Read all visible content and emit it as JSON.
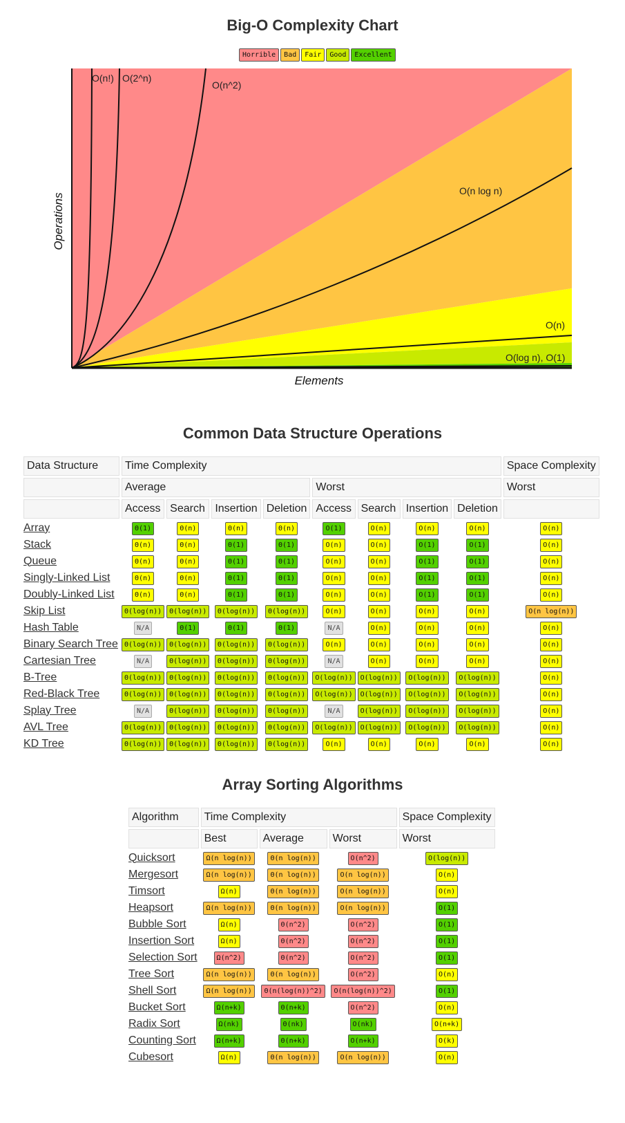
{
  "chart_title": "Big-O Complexity Chart",
  "legend": [
    {
      "label": "Horrible",
      "color": "#ff8989"
    },
    {
      "label": "Bad",
      "color": "#ffc543"
    },
    {
      "label": "Fair",
      "color": "#ffff00"
    },
    {
      "label": "Good",
      "color": "#c8ea00"
    },
    {
      "label": "Excellent",
      "color": "#53d000"
    }
  ],
  "chart_data": {
    "type": "area",
    "xlabel": "Elements",
    "ylabel": "Operations",
    "grid": false,
    "curves": [
      "O(n!)",
      "O(2^n)",
      "O(n^2)",
      "O(n log n)",
      "O(n)",
      "O(log n), O(1)"
    ]
  },
  "ds_section": {
    "title": "Common Data Structure Operations",
    "headers": {
      "data_structure": "Data Structure",
      "time_complexity": "Time Complexity",
      "space_complexity": "Space Complexity",
      "average": "Average",
      "worst": "Worst",
      "space_worst": "Worst",
      "ops": [
        "Access",
        "Search",
        "Insertion",
        "Deletion",
        "Access",
        "Search",
        "Insertion",
        "Deletion"
      ]
    },
    "rows": [
      {
        "name": "Array",
        "cells": [
          [
            "Θ(1)",
            "excellent"
          ],
          [
            "Θ(n)",
            "fair"
          ],
          [
            "Θ(n)",
            "fair"
          ],
          [
            "Θ(n)",
            "fair"
          ],
          [
            "O(1)",
            "excellent"
          ],
          [
            "O(n)",
            "fair"
          ],
          [
            "O(n)",
            "fair"
          ],
          [
            "O(n)",
            "fair"
          ],
          [
            "O(n)",
            "fair"
          ]
        ]
      },
      {
        "name": "Stack",
        "cells": [
          [
            "Θ(n)",
            "fair"
          ],
          [
            "Θ(n)",
            "fair"
          ],
          [
            "Θ(1)",
            "excellent"
          ],
          [
            "Θ(1)",
            "excellent"
          ],
          [
            "O(n)",
            "fair"
          ],
          [
            "O(n)",
            "fair"
          ],
          [
            "O(1)",
            "excellent"
          ],
          [
            "O(1)",
            "excellent"
          ],
          [
            "O(n)",
            "fair"
          ]
        ]
      },
      {
        "name": "Queue",
        "cells": [
          [
            "Θ(n)",
            "fair"
          ],
          [
            "Θ(n)",
            "fair"
          ],
          [
            "Θ(1)",
            "excellent"
          ],
          [
            "Θ(1)",
            "excellent"
          ],
          [
            "O(n)",
            "fair"
          ],
          [
            "O(n)",
            "fair"
          ],
          [
            "O(1)",
            "excellent"
          ],
          [
            "O(1)",
            "excellent"
          ],
          [
            "O(n)",
            "fair"
          ]
        ]
      },
      {
        "name": "Singly-Linked List",
        "cells": [
          [
            "Θ(n)",
            "fair"
          ],
          [
            "Θ(n)",
            "fair"
          ],
          [
            "Θ(1)",
            "excellent"
          ],
          [
            "Θ(1)",
            "excellent"
          ],
          [
            "O(n)",
            "fair"
          ],
          [
            "O(n)",
            "fair"
          ],
          [
            "O(1)",
            "excellent"
          ],
          [
            "O(1)",
            "excellent"
          ],
          [
            "O(n)",
            "fair"
          ]
        ]
      },
      {
        "name": "Doubly-Linked List",
        "cells": [
          [
            "Θ(n)",
            "fair"
          ],
          [
            "Θ(n)",
            "fair"
          ],
          [
            "Θ(1)",
            "excellent"
          ],
          [
            "Θ(1)",
            "excellent"
          ],
          [
            "O(n)",
            "fair"
          ],
          [
            "O(n)",
            "fair"
          ],
          [
            "O(1)",
            "excellent"
          ],
          [
            "O(1)",
            "excellent"
          ],
          [
            "O(n)",
            "fair"
          ]
        ]
      },
      {
        "name": "Skip List",
        "cells": [
          [
            "Θ(log(n))",
            "good"
          ],
          [
            "Θ(log(n))",
            "good"
          ],
          [
            "Θ(log(n))",
            "good"
          ],
          [
            "Θ(log(n))",
            "good"
          ],
          [
            "O(n)",
            "fair"
          ],
          [
            "O(n)",
            "fair"
          ],
          [
            "O(n)",
            "fair"
          ],
          [
            "O(n)",
            "fair"
          ],
          [
            "O(n log(n))",
            "bad"
          ]
        ]
      },
      {
        "name": "Hash Table",
        "cells": [
          [
            "N/A",
            "na"
          ],
          [
            "Θ(1)",
            "excellent"
          ],
          [
            "Θ(1)",
            "excellent"
          ],
          [
            "Θ(1)",
            "excellent"
          ],
          [
            "N/A",
            "na"
          ],
          [
            "O(n)",
            "fair"
          ],
          [
            "O(n)",
            "fair"
          ],
          [
            "O(n)",
            "fair"
          ],
          [
            "O(n)",
            "fair"
          ]
        ]
      },
      {
        "name": "Binary Search Tree",
        "cells": [
          [
            "Θ(log(n))",
            "good"
          ],
          [
            "Θ(log(n))",
            "good"
          ],
          [
            "Θ(log(n))",
            "good"
          ],
          [
            "Θ(log(n))",
            "good"
          ],
          [
            "O(n)",
            "fair"
          ],
          [
            "O(n)",
            "fair"
          ],
          [
            "O(n)",
            "fair"
          ],
          [
            "O(n)",
            "fair"
          ],
          [
            "O(n)",
            "fair"
          ]
        ]
      },
      {
        "name": "Cartesian Tree",
        "cells": [
          [
            "N/A",
            "na"
          ],
          [
            "Θ(log(n))",
            "good"
          ],
          [
            "Θ(log(n))",
            "good"
          ],
          [
            "Θ(log(n))",
            "good"
          ],
          [
            "N/A",
            "na"
          ],
          [
            "O(n)",
            "fair"
          ],
          [
            "O(n)",
            "fair"
          ],
          [
            "O(n)",
            "fair"
          ],
          [
            "O(n)",
            "fair"
          ]
        ]
      },
      {
        "name": "B-Tree",
        "cells": [
          [
            "Θ(log(n))",
            "good"
          ],
          [
            "Θ(log(n))",
            "good"
          ],
          [
            "Θ(log(n))",
            "good"
          ],
          [
            "Θ(log(n))",
            "good"
          ],
          [
            "O(log(n))",
            "good"
          ],
          [
            "O(log(n))",
            "good"
          ],
          [
            "O(log(n))",
            "good"
          ],
          [
            "O(log(n))",
            "good"
          ],
          [
            "O(n)",
            "fair"
          ]
        ]
      },
      {
        "name": "Red-Black Tree",
        "cells": [
          [
            "Θ(log(n))",
            "good"
          ],
          [
            "Θ(log(n))",
            "good"
          ],
          [
            "Θ(log(n))",
            "good"
          ],
          [
            "Θ(log(n))",
            "good"
          ],
          [
            "O(log(n))",
            "good"
          ],
          [
            "O(log(n))",
            "good"
          ],
          [
            "O(log(n))",
            "good"
          ],
          [
            "O(log(n))",
            "good"
          ],
          [
            "O(n)",
            "fair"
          ]
        ]
      },
      {
        "name": "Splay Tree",
        "cells": [
          [
            "N/A",
            "na"
          ],
          [
            "Θ(log(n))",
            "good"
          ],
          [
            "Θ(log(n))",
            "good"
          ],
          [
            "Θ(log(n))",
            "good"
          ],
          [
            "N/A",
            "na"
          ],
          [
            "O(log(n))",
            "good"
          ],
          [
            "O(log(n))",
            "good"
          ],
          [
            "O(log(n))",
            "good"
          ],
          [
            "O(n)",
            "fair"
          ]
        ]
      },
      {
        "name": "AVL Tree",
        "cells": [
          [
            "Θ(log(n))",
            "good"
          ],
          [
            "Θ(log(n))",
            "good"
          ],
          [
            "Θ(log(n))",
            "good"
          ],
          [
            "Θ(log(n))",
            "good"
          ],
          [
            "O(log(n))",
            "good"
          ],
          [
            "O(log(n))",
            "good"
          ],
          [
            "O(log(n))",
            "good"
          ],
          [
            "O(log(n))",
            "good"
          ],
          [
            "O(n)",
            "fair"
          ]
        ]
      },
      {
        "name": "KD Tree",
        "cells": [
          [
            "Θ(log(n))",
            "good"
          ],
          [
            "Θ(log(n))",
            "good"
          ],
          [
            "Θ(log(n))",
            "good"
          ],
          [
            "Θ(log(n))",
            "good"
          ],
          [
            "O(n)",
            "fair"
          ],
          [
            "O(n)",
            "fair"
          ],
          [
            "O(n)",
            "fair"
          ],
          [
            "O(n)",
            "fair"
          ],
          [
            "O(n)",
            "fair"
          ]
        ]
      }
    ]
  },
  "sort_section": {
    "title": "Array Sorting Algorithms",
    "headers": {
      "algorithm": "Algorithm",
      "time_complexity": "Time Complexity",
      "space_complexity": "Space Complexity",
      "best": "Best",
      "average": "Average",
      "worst": "Worst",
      "space_worst": "Worst"
    },
    "rows": [
      {
        "name": "Quicksort",
        "cells": [
          [
            "Ω(n log(n))",
            "bad"
          ],
          [
            "Θ(n log(n))",
            "bad"
          ],
          [
            "O(n^2)",
            "horrible"
          ],
          [
            "O(log(n))",
            "good"
          ]
        ]
      },
      {
        "name": "Mergesort",
        "cells": [
          [
            "Ω(n log(n))",
            "bad"
          ],
          [
            "Θ(n log(n))",
            "bad"
          ],
          [
            "O(n log(n))",
            "bad"
          ],
          [
            "O(n)",
            "fair"
          ]
        ]
      },
      {
        "name": "Timsort",
        "cells": [
          [
            "Ω(n)",
            "fair"
          ],
          [
            "Θ(n log(n))",
            "bad"
          ],
          [
            "O(n log(n))",
            "bad"
          ],
          [
            "O(n)",
            "fair"
          ]
        ]
      },
      {
        "name": "Heapsort",
        "cells": [
          [
            "Ω(n log(n))",
            "bad"
          ],
          [
            "Θ(n log(n))",
            "bad"
          ],
          [
            "O(n log(n))",
            "bad"
          ],
          [
            "O(1)",
            "excellent"
          ]
        ]
      },
      {
        "name": "Bubble Sort",
        "cells": [
          [
            "Ω(n)",
            "fair"
          ],
          [
            "Θ(n^2)",
            "horrible"
          ],
          [
            "O(n^2)",
            "horrible"
          ],
          [
            "O(1)",
            "excellent"
          ]
        ]
      },
      {
        "name": "Insertion Sort",
        "cells": [
          [
            "Ω(n)",
            "fair"
          ],
          [
            "Θ(n^2)",
            "horrible"
          ],
          [
            "O(n^2)",
            "horrible"
          ],
          [
            "O(1)",
            "excellent"
          ]
        ]
      },
      {
        "name": "Selection Sort",
        "cells": [
          [
            "Ω(n^2)",
            "horrible"
          ],
          [
            "Θ(n^2)",
            "horrible"
          ],
          [
            "O(n^2)",
            "horrible"
          ],
          [
            "O(1)",
            "excellent"
          ]
        ]
      },
      {
        "name": "Tree Sort",
        "cells": [
          [
            "Ω(n log(n))",
            "bad"
          ],
          [
            "Θ(n log(n))",
            "bad"
          ],
          [
            "O(n^2)",
            "horrible"
          ],
          [
            "O(n)",
            "fair"
          ]
        ]
      },
      {
        "name": "Shell Sort",
        "cells": [
          [
            "Ω(n log(n))",
            "bad"
          ],
          [
            "Θ(n(log(n))^2)",
            "horrible"
          ],
          [
            "O(n(log(n))^2)",
            "horrible"
          ],
          [
            "O(1)",
            "excellent"
          ]
        ]
      },
      {
        "name": "Bucket Sort",
        "cells": [
          [
            "Ω(n+k)",
            "excellent"
          ],
          [
            "Θ(n+k)",
            "excellent"
          ],
          [
            "O(n^2)",
            "horrible"
          ],
          [
            "O(n)",
            "fair"
          ]
        ]
      },
      {
        "name": "Radix Sort",
        "cells": [
          [
            "Ω(nk)",
            "excellent"
          ],
          [
            "Θ(nk)",
            "excellent"
          ],
          [
            "O(nk)",
            "excellent"
          ],
          [
            "O(n+k)",
            "fair"
          ]
        ]
      },
      {
        "name": "Counting Sort",
        "cells": [
          [
            "Ω(n+k)",
            "excellent"
          ],
          [
            "Θ(n+k)",
            "excellent"
          ],
          [
            "O(n+k)",
            "excellent"
          ],
          [
            "O(k)",
            "fair"
          ]
        ]
      },
      {
        "name": "Cubesort",
        "cells": [
          [
            "Ω(n)",
            "fair"
          ],
          [
            "Θ(n log(n))",
            "bad"
          ],
          [
            "O(n log(n))",
            "bad"
          ],
          [
            "O(n)",
            "fair"
          ]
        ]
      }
    ]
  }
}
